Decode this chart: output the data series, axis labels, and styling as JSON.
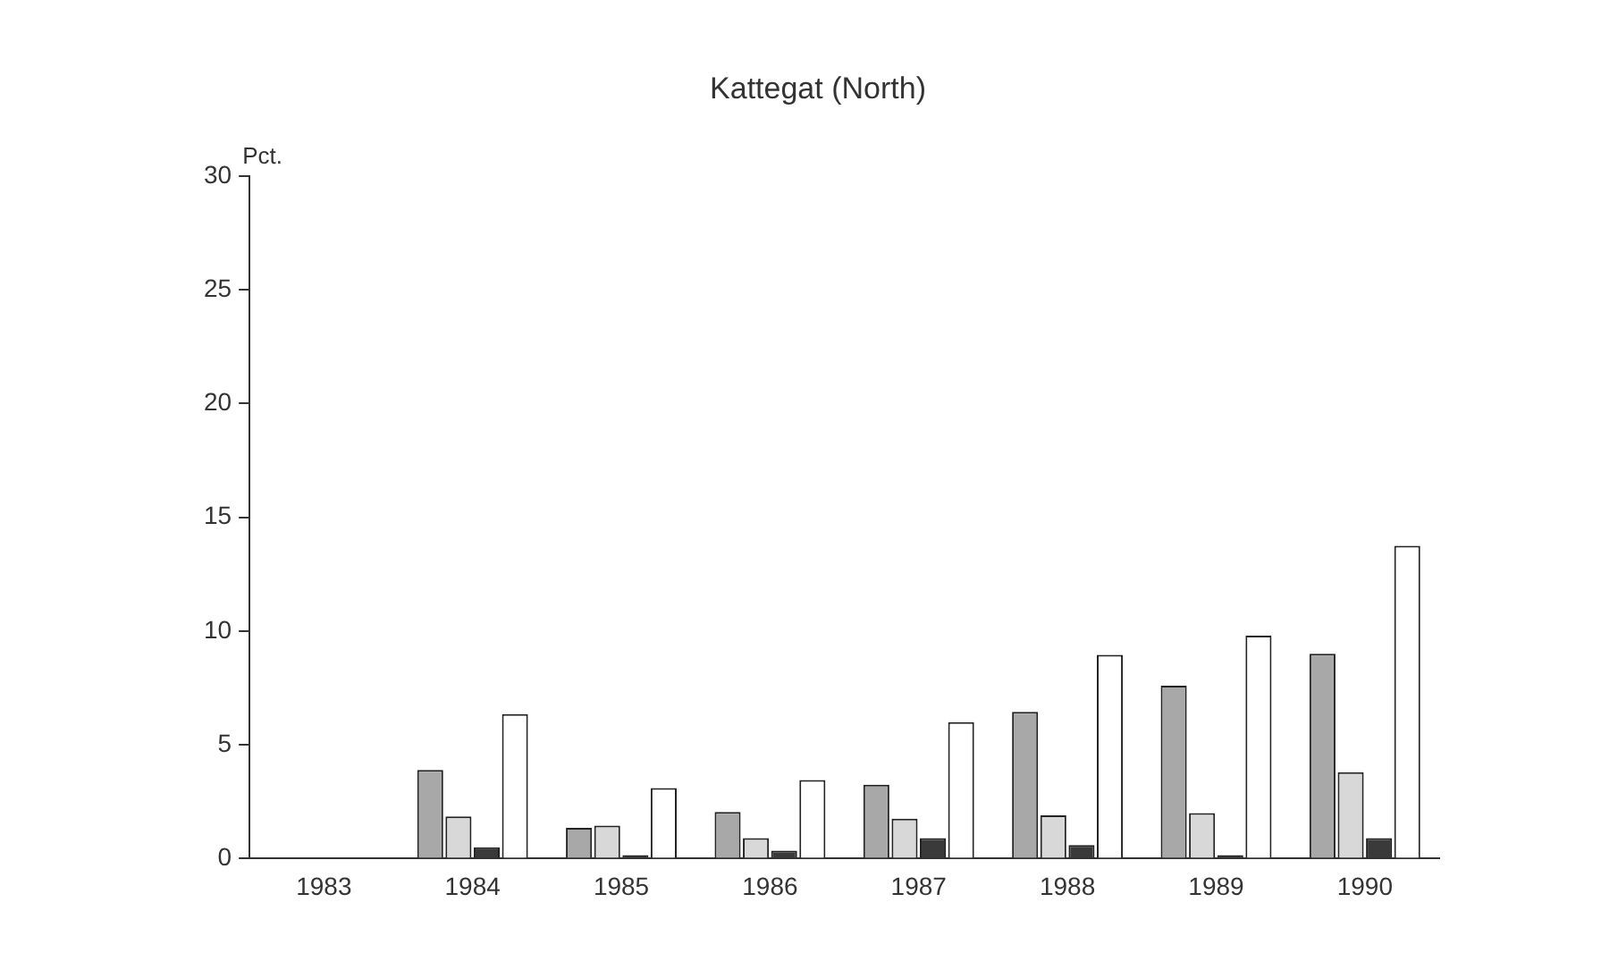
{
  "chart_data": {
    "type": "bar",
    "title": "Kattegat (North)",
    "ylabel": "Pct.",
    "categories": [
      "1983",
      "1984",
      "1985",
      "1986",
      "1987",
      "1988",
      "1989",
      "1990"
    ],
    "series": [
      {
        "color": "#a8a8a8",
        "values": [
          0,
          3.9,
          1.35,
          2.05,
          3.25,
          6.45,
          7.6,
          9.0
        ]
      },
      {
        "color": "#d8d8d8",
        "values": [
          0,
          1.85,
          1.45,
          0.9,
          1.75,
          1.9,
          2.0,
          3.8
        ]
      },
      {
        "color": "#3a3a3a",
        "values": [
          0,
          0.5,
          0.15,
          0.35,
          0.9,
          0.6,
          0.15,
          0.9
        ]
      },
      {
        "color": "#ffffff",
        "values": [
          0,
          6.35,
          3.1,
          3.45,
          6.0,
          8.95,
          9.8,
          13.75
        ]
      }
    ],
    "ylim": [
      0,
      30
    ],
    "yticks": [
      0,
      5,
      10,
      15,
      20,
      25,
      30
    ],
    "grid": false,
    "legend": false
  }
}
